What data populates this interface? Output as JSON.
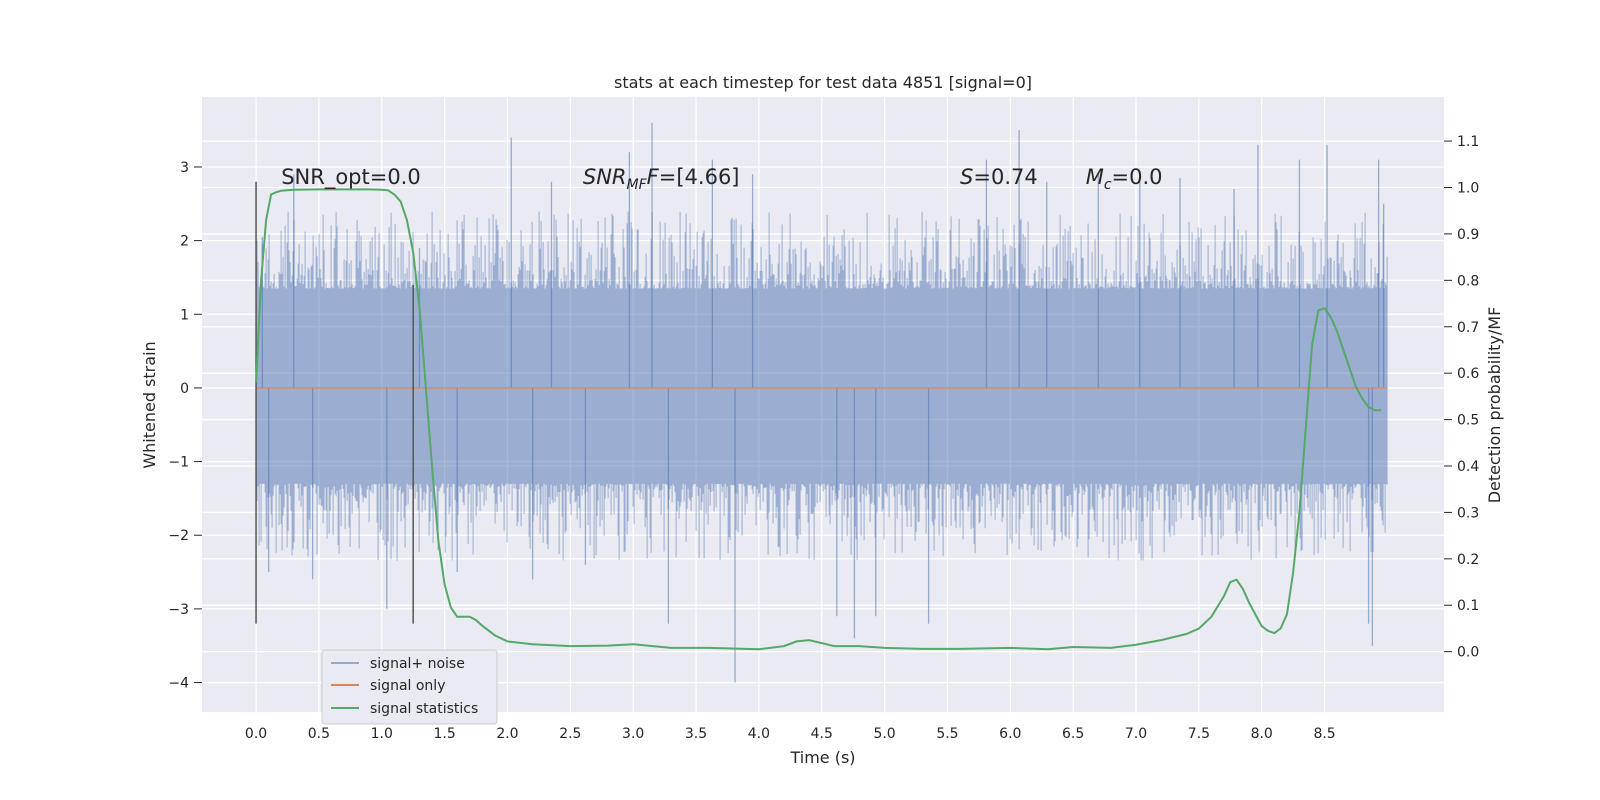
{
  "chart_data": {
    "type": "line",
    "title": "stats at each timestep for test data 4851 [signal=0]",
    "xlabel": "Time (s)",
    "ylabel": "Whitened strain",
    "y2label": "Detection probability/MF",
    "xlim": [
      -0.43,
      9.45
    ],
    "ylim": [
      -4.4,
      3.95
    ],
    "y2lim": [
      -0.13,
      1.195
    ],
    "x_ticks": [
      "0.0",
      "0.5",
      "1.0",
      "1.5",
      "2.0",
      "2.5",
      "3.0",
      "3.5",
      "4.0",
      "4.5",
      "5.0",
      "5.5",
      "6.0",
      "6.5",
      "7.0",
      "7.5",
      "8.0",
      "8.5"
    ],
    "x_tick_values": [
      0,
      0.5,
      1,
      1.5,
      2,
      2.5,
      3,
      3.5,
      4,
      4.5,
      5,
      5.5,
      6,
      6.5,
      7,
      7.5,
      8,
      8.5
    ],
    "y_ticks": [
      "3",
      "2",
      "1",
      "0",
      "−1",
      "−2",
      "−3",
      "−4"
    ],
    "y_tick_values": [
      3,
      2,
      1,
      0,
      -1,
      -2,
      -3,
      -4
    ],
    "y2_ticks": [
      "1.1",
      "1.0",
      "0.9",
      "0.8",
      "0.7",
      "0.6",
      "0.5",
      "0.4",
      "0.3",
      "0.2",
      "0.1",
      "0.0"
    ],
    "y2_tick_values": [
      1.1,
      1.0,
      0.9,
      0.8,
      0.7,
      0.6,
      0.5,
      0.4,
      0.3,
      0.2,
      0.1,
      0.0
    ],
    "grid": true,
    "legend_position": "lower-left",
    "series": [
      {
        "name": "signal+ noise",
        "axis": "left",
        "color": "#4c72b0",
        "description": "whitened strain noise spanning t=0 to 9.0 s, dense band mostly within ±1.6 with spikes up to about 3.6 and down to about -4.0",
        "t_range": [
          0,
          9.0
        ],
        "band": [
          -1.55,
          1.6
        ],
        "spikes": [
          {
            "x": 0.05,
            "y": 2.05
          },
          {
            "x": 0.1,
            "y": -2.5
          },
          {
            "x": 0.3,
            "y": 2.9
          },
          {
            "x": 0.45,
            "y": -2.6
          },
          {
            "x": 1.04,
            "y": -3.0
          },
          {
            "x": 1.3,
            "y": 1.9
          },
          {
            "x": 1.6,
            "y": -2.5
          },
          {
            "x": 2.03,
            "y": 3.4
          },
          {
            "x": 2.2,
            "y": -2.6
          },
          {
            "x": 2.35,
            "y": 2.8
          },
          {
            "x": 2.62,
            "y": -2.4
          },
          {
            "x": 2.97,
            "y": 3.2
          },
          {
            "x": 3.15,
            "y": 3.6
          },
          {
            "x": 3.28,
            "y": -3.2
          },
          {
            "x": 3.63,
            "y": 3.1
          },
          {
            "x": 3.81,
            "y": -4.0
          },
          {
            "x": 3.95,
            "y": 2.9
          },
          {
            "x": 4.62,
            "y": -3.1
          },
          {
            "x": 4.76,
            "y": -3.4
          },
          {
            "x": 4.93,
            "y": -3.1
          },
          {
            "x": 5.35,
            "y": -3.2
          },
          {
            "x": 5.81,
            "y": 3.1
          },
          {
            "x": 6.07,
            "y": 3.5
          },
          {
            "x": 6.29,
            "y": 2.8
          },
          {
            "x": 6.7,
            "y": 2.9
          },
          {
            "x": 7.03,
            "y": 2.9
          },
          {
            "x": 7.35,
            "y": 2.85
          },
          {
            "x": 7.78,
            "y": 2.7
          },
          {
            "x": 7.97,
            "y": 3.3
          },
          {
            "x": 8.3,
            "y": 3.1
          },
          {
            "x": 8.52,
            "y": 3.3
          },
          {
            "x": 8.85,
            "y": -3.2
          },
          {
            "x": 8.88,
            "y": -3.5
          },
          {
            "x": 8.93,
            "y": 3.1
          },
          {
            "x": 8.97,
            "y": 2.5
          }
        ]
      },
      {
        "name": "signal only",
        "axis": "left",
        "color": "#dd8452",
        "x": [
          0,
          9.0
        ],
        "y": [
          0,
          0
        ]
      },
      {
        "name": "signal statistics",
        "axis": "right",
        "color": "#55a868",
        "x": [
          0,
          0.04,
          0.08,
          0.12,
          0.16,
          0.2,
          0.3,
          0.5,
          0.7,
          0.9,
          1.0,
          1.05,
          1.1,
          1.15,
          1.2,
          1.25,
          1.3,
          1.35,
          1.4,
          1.45,
          1.5,
          1.55,
          1.6,
          1.65,
          1.7,
          1.75,
          1.8,
          1.9,
          2.0,
          2.2,
          2.5,
          2.8,
          3.0,
          3.3,
          3.6,
          4.0,
          4.2,
          4.3,
          4.4,
          4.6,
          4.8,
          5.0,
          5.3,
          5.6,
          6.0,
          6.3,
          6.5,
          6.8,
          7.0,
          7.2,
          7.4,
          7.5,
          7.6,
          7.7,
          7.75,
          7.8,
          7.85,
          7.9,
          7.95,
          8.0,
          8.05,
          8.1,
          8.15,
          8.2,
          8.25,
          8.3,
          8.35,
          8.4,
          8.45,
          8.5,
          8.55,
          8.6,
          8.65,
          8.7,
          8.75,
          8.8,
          8.85,
          8.9,
          8.95
        ],
        "y": [
          0.58,
          0.8,
          0.93,
          0.985,
          0.99,
          0.993,
          0.995,
          0.996,
          0.996,
          0.996,
          0.995,
          0.994,
          0.985,
          0.97,
          0.93,
          0.86,
          0.74,
          0.57,
          0.4,
          0.24,
          0.145,
          0.095,
          0.075,
          0.075,
          0.075,
          0.068,
          0.056,
          0.035,
          0.022,
          0.016,
          0.012,
          0.013,
          0.016,
          0.008,
          0.008,
          0.005,
          0.012,
          0.022,
          0.025,
          0.012,
          0.012,
          0.008,
          0.006,
          0.006,
          0.008,
          0.005,
          0.01,
          0.008,
          0.015,
          0.025,
          0.038,
          0.05,
          0.075,
          0.12,
          0.15,
          0.155,
          0.135,
          0.105,
          0.08,
          0.055,
          0.045,
          0.04,
          0.05,
          0.08,
          0.17,
          0.3,
          0.48,
          0.66,
          0.735,
          0.74,
          0.72,
          0.69,
          0.65,
          0.61,
          0.57,
          0.545,
          0.527,
          0.52,
          0.52
        ]
      }
    ],
    "vlines": [
      {
        "x": 0.0,
        "y_range": [
          -3.2,
          2.8
        ],
        "color": "#555555"
      },
      {
        "x": 1.25,
        "y_range": [
          -3.2,
          1.4
        ],
        "color": "#555555"
      }
    ],
    "annotations": [
      {
        "name": "snr-opt",
        "text": "SNR_opt=0.0",
        "x": 0.2
      },
      {
        "name": "snr-mf",
        "label": "SNR",
        "sub": "MF",
        "value": "=[4.66]",
        "x": 2.6
      },
      {
        "name": "s-stat",
        "label": "S",
        "value": "=0.74",
        "x": 5.6
      },
      {
        "name": "mc",
        "label": "M",
        "sub": "c",
        "value": "=0.0",
        "x": 6.6
      }
    ]
  }
}
